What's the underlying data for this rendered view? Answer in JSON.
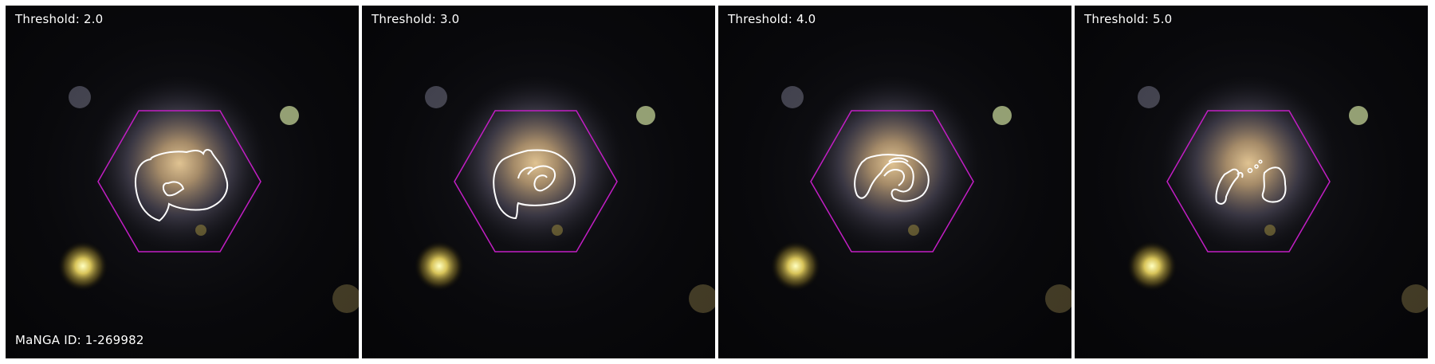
{
  "panels": [
    {
      "threshold_text": "Threshold: 2.0"
    },
    {
      "threshold_text": "Threshold: 3.0"
    },
    {
      "threshold_text": "Threshold: 4.0"
    },
    {
      "threshold_text": "Threshold: 5.0"
    }
  ],
  "manga_id_text": "MaNGA ID: 1-269982",
  "colors": {
    "hexagon": "#c21ec4",
    "contour": "#ffffff",
    "sky": "#07070a",
    "galaxy_core": "#c7a06a"
  },
  "icons": [
    "galaxy-image",
    "ifu-hexagon-outline",
    "contour-outline"
  ]
}
